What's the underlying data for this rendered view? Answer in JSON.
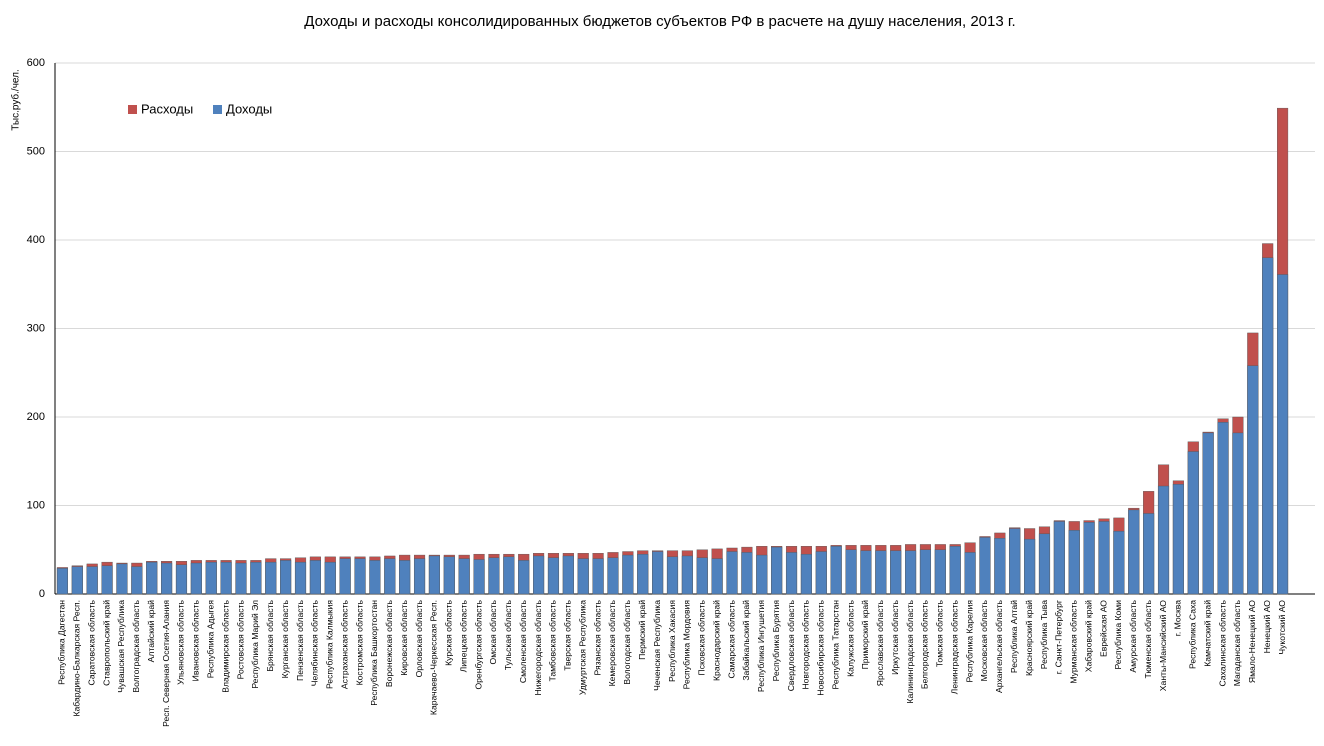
{
  "chart_data": {
    "type": "bar",
    "title": "Доходы и расходы консолидированных бюджетов субъектов РФ в расчете на душу населения, 2013 г.",
    "y_label": "Тыс.руб./чел.",
    "categories": [
      "Республика Дагестан",
      "Кабардино-Балкарская Респ.",
      "Саратовская область",
      "Ставропольский край",
      "Чувашская Республика",
      "Волгоградская область",
      "Алтайский край",
      "Респ. Северная Осетия-Алания",
      "Ульяновская область",
      "Ивановская область",
      "Республика Адыгея",
      "Владимирская область",
      "Ростовская область",
      "Республика Марий Эл",
      "Брянская область",
      "Курганская область",
      "Пензенская область",
      "Челябинская область",
      "Республика Калмыкия",
      "Астраханская область",
      "Костромская область",
      "Республика Башкортостан",
      "Воронежская область",
      "Кировская область",
      "Орловская область",
      "Карачаево-Черкесская Респ.",
      "Курская область",
      "Липецкая область",
      "Оренбургская область",
      "Омская область",
      "Тульская область",
      "Смоленская область",
      "Нижегородская область",
      "Тамбовская область",
      "Тверская область",
      "Удмуртская Республика",
      "Рязанская область",
      "Кемеровская область",
      "Вологодская область",
      "Пермский край",
      "Чеченская Республика",
      "Республика Хакасия",
      "Республика Мордовия",
      "Псковская область",
      "Краснодарский край",
      "Самарская область",
      "Забайкальский край",
      "Республика Ингушетия",
      "Республика Бурятия",
      "Свердловская область",
      "Новгородская область",
      "Новосибирская область",
      "Республика Татарстан",
      "Калужская область",
      "Приморский край",
      "Ярославская область",
      "Иркутская область",
      "Калининградская область",
      "Белгородская область",
      "Томская область",
      "Ленинградская область",
      "Республика Карелия",
      "Московская область",
      "Архангельская область",
      "Республика Алтай",
      "Красноярский край",
      "Республика Тыва",
      "г. Санкт-Петербург",
      "Мурманская область",
      "Хабаровский край",
      "Еврейская АО",
      "Республика Коми",
      "Амурская область",
      "Тюменская область",
      "Ханты-Мансийский АО",
      "г. Москва",
      "Республика Саха",
      "Камчатский край",
      "Сахалинская область",
      "Магаданская область",
      "Ямало-Ненецкий АО",
      "Ненецкий АО",
      "Чукотский АО"
    ],
    "series": [
      {
        "name": "Расходы",
        "color": "#c0504d",
        "values": [
          30,
          32,
          34,
          36,
          35,
          35,
          37,
          37,
          37,
          38,
          38,
          38,
          38,
          38,
          40,
          40,
          41,
          42,
          42,
          42,
          42,
          42,
          43,
          44,
          44,
          44,
          44,
          44,
          45,
          45,
          45,
          45,
          46,
          46,
          46,
          46,
          46,
          47,
          48,
          49,
          49,
          49,
          49,
          50,
          51,
          52,
          53,
          54,
          54,
          54,
          54,
          54,
          55,
          55,
          55,
          55,
          55,
          56,
          56,
          56,
          56,
          58,
          65,
          69,
          75,
          74,
          76,
          83,
          82,
          83,
          85,
          86,
          97,
          116,
          146,
          128,
          172,
          183,
          198,
          200,
          295,
          396,
          549
        ]
      },
      {
        "name": "Доходы",
        "color": "#4f81bd",
        "values": [
          29,
          31,
          31,
          32,
          34,
          31,
          36,
          35,
          33,
          35,
          36,
          36,
          35,
          36,
          36,
          38,
          36,
          38,
          36,
          40,
          40,
          38,
          40,
          38,
          40,
          43,
          42,
          40,
          39,
          41,
          42,
          38,
          43,
          41,
          43,
          40,
          40,
          41,
          44,
          45,
          48,
          42,
          43,
          41,
          40,
          48,
          47,
          44,
          53,
          47,
          45,
          48,
          54,
          50,
          49,
          49,
          49,
          49,
          50,
          50,
          54,
          47,
          64,
          63,
          74,
          62,
          68,
          82,
          72,
          81,
          82,
          71,
          95,
          91,
          122,
          124,
          161,
          182,
          194,
          182,
          258,
          380,
          361
        ]
      }
    ],
    "ylim": [
      0,
      600
    ],
    "yticks": [
      0,
      100,
      200,
      300,
      400,
      500,
      600
    ],
    "grid": true,
    "legend": "upper left"
  }
}
